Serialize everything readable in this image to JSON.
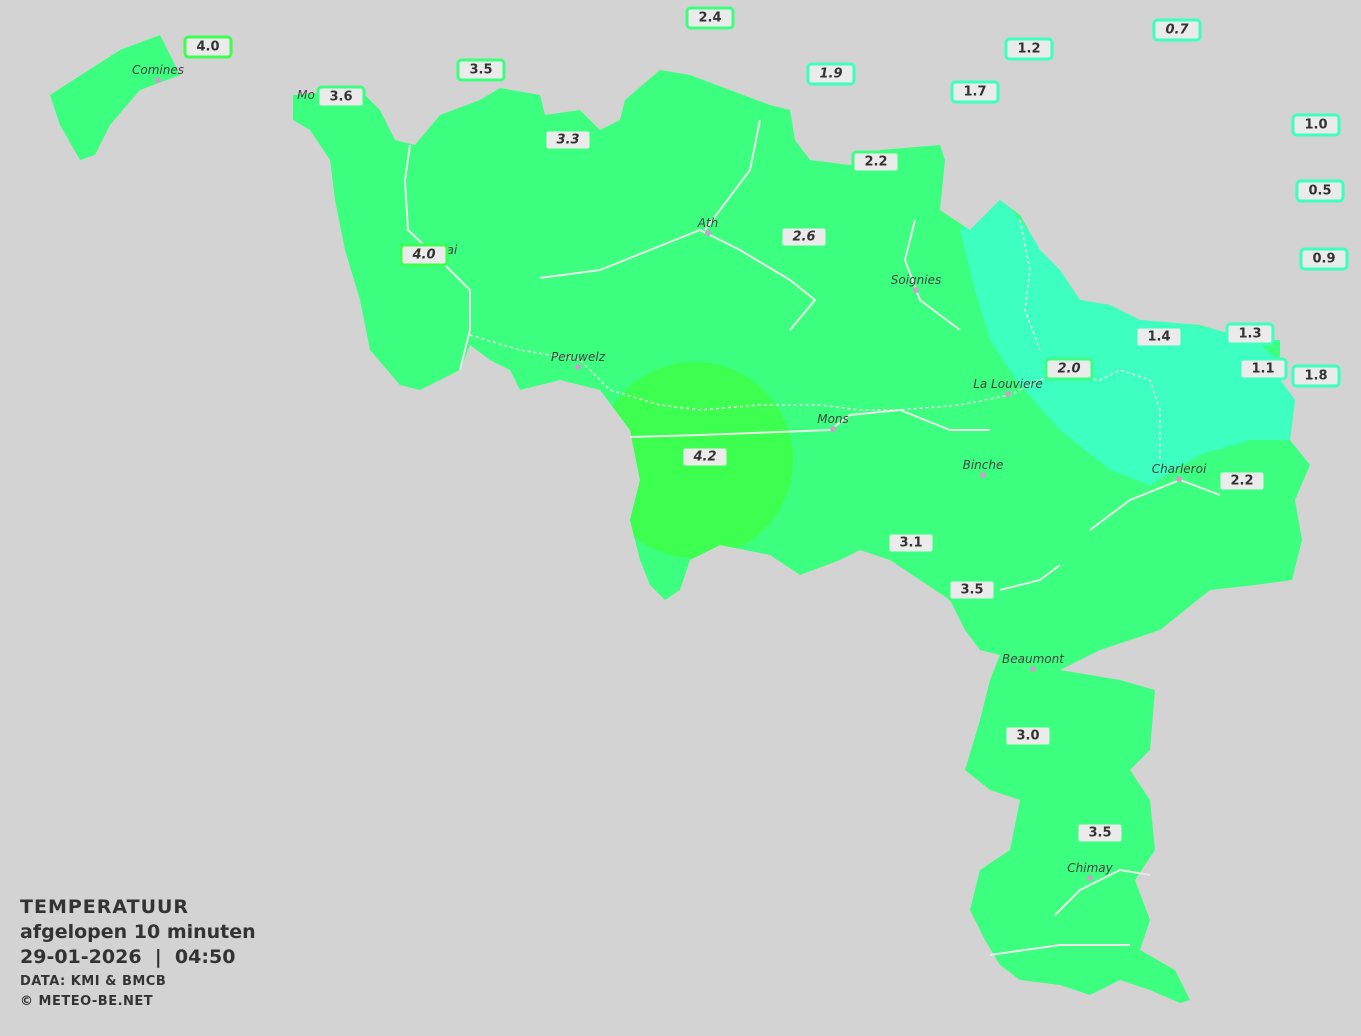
{
  "legend": {
    "title": "TEMPERATUUR",
    "period": "afgelopen 10 minuten",
    "datetime": "29-01-2026  |  04:50",
    "source": "DATA: KMI & BMCB",
    "copyright": "© METEO-BE.NET"
  },
  "colors": {
    "background": "#d3d3d3",
    "temp_2_4": "#3dff7f",
    "temp_4_plus": "#3dff50",
    "temp_below_2": "#3dffbf",
    "label_bg": "#ebebeb"
  },
  "cities": [
    "Comines",
    "Mo",
    "ai",
    "Ath",
    "Soignies",
    "Peruwelz",
    "La Louviere",
    "Mons",
    "Binche",
    "Charleroi",
    "Beaumont",
    "Chimay"
  ],
  "stations": [
    {
      "value": "4.0",
      "italic": false
    },
    {
      "value": "2.4",
      "italic": false
    },
    {
      "value": "3.5",
      "italic": false
    },
    {
      "value": "3.6",
      "italic": false
    },
    {
      "value": "1.9",
      "italic": true
    },
    {
      "value": "1.2",
      "italic": false
    },
    {
      "value": "0.7",
      "italic": true
    },
    {
      "value": "1.7",
      "italic": false
    },
    {
      "value": "3.3",
      "italic": true
    },
    {
      "value": "2.2",
      "italic": false
    },
    {
      "value": "1.0",
      "italic": false
    },
    {
      "value": "0.5",
      "italic": false
    },
    {
      "value": "0.9",
      "italic": false
    },
    {
      "value": "2.6",
      "italic": true
    },
    {
      "value": "4.0",
      "italic": true
    },
    {
      "value": "1.4",
      "italic": false
    },
    {
      "value": "1.3",
      "italic": false
    },
    {
      "value": "2.0",
      "italic": true
    },
    {
      "value": "1.1",
      "italic": false
    },
    {
      "value": "1.8",
      "italic": false
    },
    {
      "value": "4.2",
      "italic": true
    },
    {
      "value": "2.2",
      "italic": false
    },
    {
      "value": "3.1",
      "italic": false
    },
    {
      "value": "3.5",
      "italic": false
    },
    {
      "value": "3.0",
      "italic": false
    },
    {
      "value": "3.5",
      "italic": false
    }
  ]
}
